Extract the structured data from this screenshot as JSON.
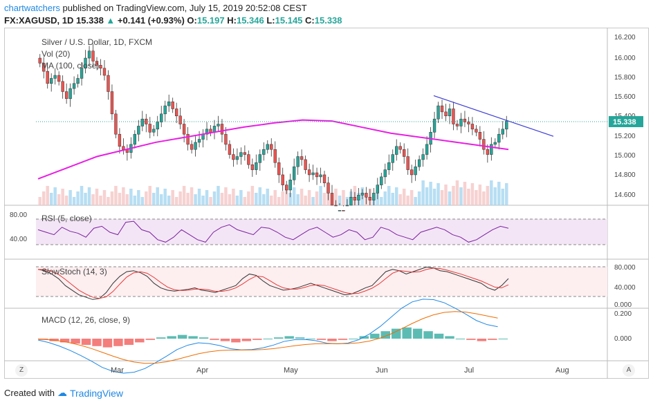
{
  "header": {
    "author": "chartwatchers",
    "published_text": "published on TradingView.com, July 15, 2019 20:52:08 CEST",
    "symbol": "FX:XAGUSD, 1D",
    "last": "15.338",
    "change": "+0.141 (+0.93%)",
    "o_label": "O:",
    "o_value": "15.197",
    "h_label": "H:",
    "h_value": "15.346",
    "l_label": "L:",
    "l_value": "15.145",
    "c_label": "C:",
    "c_value": "15.338"
  },
  "panes": {
    "price": {
      "title": "Silver / U.S. Dollar, 1D, FXCM",
      "vol_label": "Vol (20)",
      "ma_label": "MA (100, close)",
      "last_badge": "15.338",
      "ticks": [
        "16.200",
        "16.000",
        "15.800",
        "15.600",
        "15.400",
        "15.200",
        "15.000",
        "14.800",
        "14.600"
      ]
    },
    "rsi": {
      "title": "RSI (5, close)",
      "ticks": [
        "80.00",
        "40.00"
      ]
    },
    "stoch": {
      "title": "SlowStoch (14, 3)",
      "ticks": [
        "80.000",
        "40.000",
        "0.000"
      ]
    },
    "macd": {
      "title": "MACD (12, 26, close, 9)",
      "ticks": [
        "0.200",
        "0.000"
      ]
    }
  },
  "x_axis": {
    "labels": [
      "Mar",
      "Apr",
      "May",
      "Jun",
      "Jul",
      "Aug"
    ]
  },
  "buttons": {
    "zoom": "Z",
    "auto": "A"
  },
  "footer": {
    "created_with": "Created with",
    "brand": "TradingView"
  },
  "colors": {
    "up": "#26a69a",
    "down": "#ef5350",
    "ma": "#e91ee3",
    "trend": "#3b3bd6",
    "rsi": "#7b1fa2",
    "volume": "#90caf9"
  },
  "chart_data": {
    "type": "candlestick",
    "price_ylim": [
      14.5,
      16.25
    ],
    "trendline": {
      "from": [
        "2019-06-19",
        15.58
      ],
      "to": [
        "2019-08-07",
        15.18
      ]
    },
    "last_price": 15.338,
    "ma100": [
      [
        0,
        14.76
      ],
      [
        10,
        14.87
      ],
      [
        20,
        14.98
      ],
      [
        30,
        15.05
      ],
      [
        40,
        15.12
      ],
      [
        50,
        15.17
      ],
      [
        60,
        15.22
      ],
      [
        70,
        15.27
      ],
      [
        80,
        15.31
      ],
      [
        90,
        15.34
      ],
      [
        100,
        15.33
      ],
      [
        110,
        15.27
      ],
      [
        120,
        15.21
      ],
      [
        130,
        15.17
      ],
      [
        140,
        15.13
      ],
      [
        150,
        15.09
      ],
      [
        160,
        15.05
      ]
    ],
    "closes": [
      15.9,
      15.82,
      15.7,
      15.75,
      15.78,
      15.72,
      15.62,
      15.55,
      15.65,
      15.7,
      15.75,
      15.85,
      15.95,
      16.02,
      15.92,
      15.88,
      15.85,
      15.78,
      15.62,
      15.4,
      15.2,
      15.08,
      15.05,
      15.02,
      15.1,
      15.2,
      15.28,
      15.35,
      15.3,
      15.22,
      15.25,
      15.32,
      15.4,
      15.48,
      15.52,
      15.45,
      15.38,
      15.3,
      15.2,
      15.1,
      15.05,
      15.12,
      15.15,
      15.2,
      15.25,
      15.22,
      15.28,
      15.3,
      15.2,
      15.1,
      15.0,
      14.95,
      14.98,
      15.02,
      15.0,
      14.9,
      14.85,
      14.92,
      15.0,
      15.05,
      15.1,
      15.05,
      14.92,
      14.8,
      14.7,
      14.65,
      14.75,
      14.88,
      14.98,
      14.95,
      14.85,
      14.8,
      14.82,
      14.78,
      14.8,
      14.72,
      14.62,
      14.5,
      14.4,
      14.45,
      14.42,
      14.5,
      14.58,
      14.55,
      14.6,
      14.62,
      14.58,
      14.55,
      14.62,
      14.7,
      14.78,
      14.85,
      14.92,
      15.0,
      15.08,
      15.05,
      14.98,
      14.85,
      14.8,
      14.88,
      14.95,
      15.0,
      15.1,
      15.22,
      15.35,
      15.48,
      15.42,
      15.38,
      15.45,
      15.3,
      15.28,
      15.35,
      15.32,
      15.3,
      15.25,
      15.22,
      15.15,
      15.05,
      15.0,
      15.1,
      15.12,
      15.2,
      15.25,
      15.33
    ],
    "rsi": [
      55,
      50,
      45,
      60,
      52,
      48,
      40,
      58,
      62,
      50,
      45,
      70,
      72,
      55,
      50,
      35,
      30,
      40,
      55,
      45,
      35,
      30,
      50,
      60,
      65,
      55,
      50,
      45,
      60,
      58,
      50,
      40,
      35,
      45,
      55,
      60,
      50,
      40,
      45,
      55,
      50,
      35,
      40,
      60,
      55,
      45,
      40,
      35,
      50,
      55,
      60,
      55,
      45,
      40,
      30,
      35,
      45,
      55,
      62,
      58
    ],
    "stoch": [
      75,
      72,
      65,
      55,
      40,
      30,
      20,
      15,
      10,
      12,
      25,
      45,
      60,
      70,
      72,
      68,
      60,
      45,
      35,
      30,
      28,
      30,
      32,
      35,
      30,
      28,
      25,
      30,
      35,
      40,
      55,
      65,
      62,
      50,
      40,
      35,
      30,
      32,
      35,
      40,
      45,
      40,
      35,
      30,
      25,
      20,
      22,
      28,
      35,
      40,
      55,
      70,
      75,
      72,
      65,
      70,
      75,
      80,
      78,
      72,
      70,
      65,
      60,
      55,
      50,
      45,
      35,
      30,
      40,
      55
    ],
    "macd_hist": [
      -0.01,
      -0.02,
      -0.03,
      -0.04,
      -0.05,
      -0.06,
      -0.07,
      -0.06,
      -0.05,
      -0.03,
      -0.01,
      0.01,
      0.02,
      0.03,
      0.02,
      0.01,
      -0.01,
      -0.02,
      -0.03,
      -0.02,
      -0.01,
      0.0,
      0.01,
      0.02,
      0.01,
      0.0,
      -0.01,
      -0.02,
      -0.01,
      0.0,
      0.02,
      0.04,
      0.06,
      0.08,
      0.09,
      0.08,
      0.06,
      0.04,
      0.02,
      0.0,
      -0.01,
      -0.02,
      -0.01,
      0.0
    ]
  }
}
